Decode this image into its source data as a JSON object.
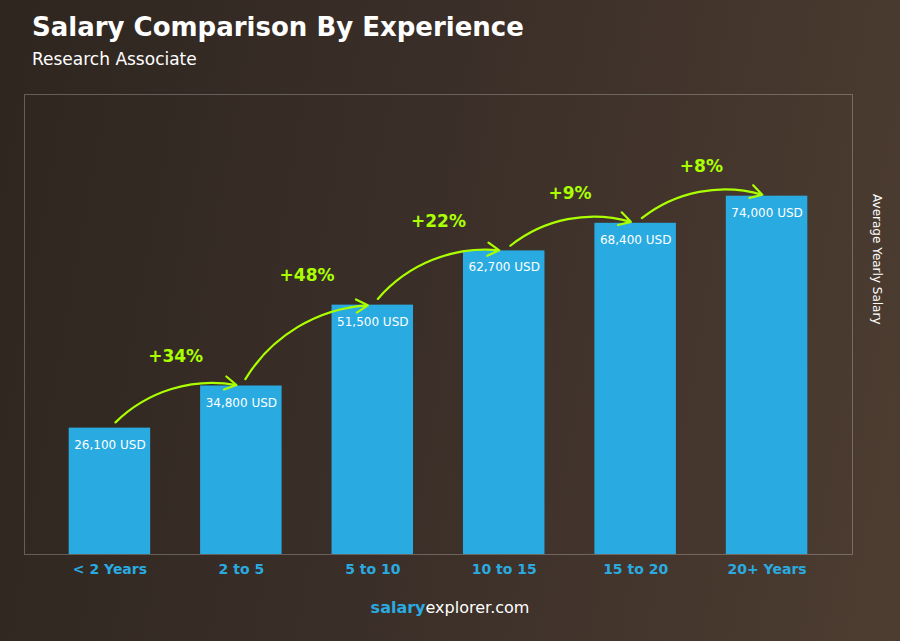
{
  "chart_data": {
    "type": "bar",
    "title": "Salary Comparison By Experience",
    "subtitle": "Research Associate",
    "categories": [
      "< 2 Years",
      "2 to 5",
      "5 to 10",
      "10 to 15",
      "15 to 20",
      "20+ Years"
    ],
    "values": [
      26100,
      34800,
      51500,
      62700,
      68400,
      74000
    ],
    "value_labels": [
      "26,100 USD",
      "34,800 USD",
      "51,500 USD",
      "62,700 USD",
      "68,400 USD",
      "74,000 USD"
    ],
    "data_labels": true,
    "color": "#29abe2",
    "ylabel": "Average Yearly Salary",
    "ylim": [
      0,
      95000
    ],
    "yticks": [],
    "tick_labels": "x",
    "grid": false,
    "annotations": [
      "+34%",
      "+48%",
      "+22%",
      "+9%",
      "+8%"
    ],
    "caption": [
      "salary",
      "explorer.com"
    ]
  }
}
